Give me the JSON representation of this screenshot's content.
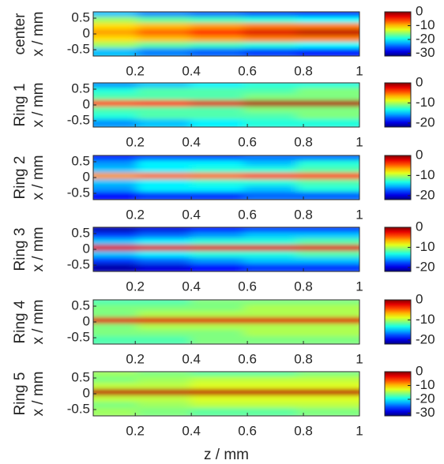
{
  "chart_data": [
    {
      "type": "heatmap",
      "name": "center",
      "ylabel": "x / mm",
      "xlim": [
        0.05,
        1
      ],
      "ylim": [
        -0.7,
        0.7
      ],
      "xticks": [
        0.2,
        0.4,
        0.6,
        0.8,
        1
      ],
      "yticks": [
        0.5,
        0,
        -0.5
      ],
      "clim": [
        -32,
        0
      ],
      "cticks": [
        0,
        -10,
        -20,
        -30
      ],
      "z": [
        0.145,
        0.335,
        0.525,
        0.715,
        0.905
      ],
      "x": [
        0.6,
        0.4,
        0.2,
        0,
        -0.2,
        -0.4,
        -0.6
      ],
      "values": [
        [
          -22,
          -24,
          -25,
          -26,
          -27
        ],
        [
          -15,
          -17,
          -18,
          -19,
          -20
        ],
        [
          -11,
          -10,
          -9,
          -8,
          -8
        ],
        [
          -9,
          -7,
          -5,
          -3,
          -2
        ],
        [
          -11,
          -10,
          -9,
          -8,
          -8
        ],
        [
          -15,
          -17,
          -18,
          -19,
          -20
        ],
        [
          -22,
          -24,
          -25,
          -26,
          -27
        ]
      ]
    },
    {
      "type": "heatmap",
      "name": "Ring 1",
      "ylabel": "x / mm",
      "xlim": [
        0.05,
        1
      ],
      "ylim": [
        -0.7,
        0.7
      ],
      "xticks": [
        0.2,
        0.4,
        0.6,
        0.8,
        1
      ],
      "yticks": [
        0.5,
        0,
        -0.5
      ],
      "clim": [
        -22,
        0
      ],
      "cticks": [
        0,
        -10,
        -20
      ],
      "z": [
        0.145,
        0.335,
        0.525,
        0.715,
        0.905
      ],
      "x": [
        0.6,
        0.4,
        0.2,
        0,
        -0.2,
        -0.4,
        -0.6
      ],
      "values": [
        [
          -16,
          -15,
          -14,
          -13,
          -13
        ],
        [
          -13,
          -12,
          -12,
          -12,
          -11
        ],
        [
          -12,
          -12,
          -12,
          -11,
          -11
        ],
        [
          -4,
          -3,
          -2,
          -1,
          -1
        ],
        [
          -12,
          -12,
          -12,
          -11,
          -11
        ],
        [
          -13,
          -12,
          -12,
          -12,
          -11
        ],
        [
          -16,
          -15,
          -14,
          -13,
          -13
        ]
      ]
    },
    {
      "type": "heatmap",
      "name": "Ring 2",
      "ylabel": "x / mm",
      "xlim": [
        0.05,
        1
      ],
      "ylim": [
        -0.7,
        0.7
      ],
      "xticks": [
        0.2,
        0.4,
        0.6,
        0.8,
        1
      ],
      "yticks": [
        0.5,
        0,
        -0.5
      ],
      "clim": [
        -22,
        0
      ],
      "cticks": [
        0,
        -10,
        -20
      ],
      "z": [
        0.145,
        0.335,
        0.525,
        0.715,
        0.905
      ],
      "x": [
        0.6,
        0.4,
        0.2,
        0,
        -0.2,
        -0.4,
        -0.6
      ],
      "values": [
        [
          -19,
          -18,
          -18,
          -17,
          -17
        ],
        [
          -16,
          -14,
          -14,
          -15,
          -13
        ],
        [
          -15,
          -14,
          -13,
          -13,
          -12
        ],
        [
          -6,
          -5,
          -5,
          -4,
          -4
        ],
        [
          -15,
          -14,
          -13,
          -13,
          -12
        ],
        [
          -16,
          -14,
          -14,
          -15,
          -13
        ],
        [
          -19,
          -18,
          -18,
          -17,
          -17
        ]
      ]
    },
    {
      "type": "heatmap",
      "name": "Ring 3",
      "ylabel": "x / mm",
      "xlim": [
        0.05,
        1
      ],
      "ylim": [
        -0.7,
        0.7
      ],
      "xticks": [
        0.2,
        0.4,
        0.6,
        0.8,
        1
      ],
      "yticks": [
        0.5,
        0,
        -0.5
      ],
      "clim": [
        -22,
        0
      ],
      "cticks": [
        0,
        -10,
        -20
      ],
      "z": [
        0.145,
        0.335,
        0.525,
        0.715,
        0.905
      ],
      "x": [
        0.6,
        0.4,
        0.2,
        0,
        -0.2,
        -0.4,
        -0.6
      ],
      "values": [
        [
          -21,
          -20,
          -19,
          -18,
          -18
        ],
        [
          -18,
          -17,
          -16,
          -15,
          -15
        ],
        [
          -15,
          -14,
          -13,
          -13,
          -12
        ],
        [
          -2,
          -2,
          -2,
          -2,
          -2
        ],
        [
          -15,
          -14,
          -13,
          -13,
          -12
        ],
        [
          -18,
          -17,
          -16,
          -15,
          -15
        ],
        [
          -21,
          -20,
          -19,
          -18,
          -18
        ]
      ]
    },
    {
      "type": "heatmap",
      "name": "Ring 4",
      "ylabel": "x / mm",
      "xlim": [
        0.05,
        1
      ],
      "ylim": [
        -0.7,
        0.7
      ],
      "xticks": [
        0.2,
        0.4,
        0.6,
        0.8,
        1
      ],
      "yticks": [
        0.5,
        0,
        -0.5
      ],
      "clim": [
        -22,
        0
      ],
      "cticks": [
        0,
        -10,
        -20
      ],
      "z": [
        0.145,
        0.335,
        0.525,
        0.715,
        0.905
      ],
      "x": [
        0.6,
        0.4,
        0.2,
        0,
        -0.2,
        -0.4,
        -0.6
      ],
      "values": [
        [
          -12,
          -12,
          -11,
          -11,
          -11
        ],
        [
          -11,
          -11,
          -11,
          -10,
          -10
        ],
        [
          -11,
          -10,
          -10,
          -10,
          -10
        ],
        [
          -2,
          -2,
          -2,
          -2,
          -2
        ],
        [
          -11,
          -10,
          -10,
          -10,
          -10
        ],
        [
          -11,
          -11,
          -11,
          -10,
          -10
        ],
        [
          -12,
          -12,
          -11,
          -11,
          -11
        ]
      ]
    },
    {
      "type": "heatmap",
      "name": "Ring 5",
      "ylabel": "x / mm",
      "xlabel": "z / mm",
      "xlim": [
        0.05,
        1
      ],
      "ylim": [
        -0.7,
        0.7
      ],
      "xticks": [
        0.2,
        0.4,
        0.6,
        0.8,
        1
      ],
      "yticks": [
        0.5,
        0,
        -0.5
      ],
      "clim": [
        -32,
        0
      ],
      "cticks": [
        0,
        -10,
        -20,
        -30
      ],
      "z": [
        0.145,
        0.335,
        0.525,
        0.715,
        0.905
      ],
      "x": [
        0.6,
        0.4,
        0.2,
        0,
        -0.2,
        -0.4,
        -0.6
      ],
      "values": [
        [
          -15,
          -16,
          -17,
          -17,
          -16
        ],
        [
          -16,
          -15,
          -14,
          -14,
          -14
        ],
        [
          -14,
          -14,
          -13,
          -13,
          -13
        ],
        [
          -2,
          -2,
          -2,
          -2,
          -2
        ],
        [
          -14,
          -14,
          -13,
          -13,
          -13
        ],
        [
          -16,
          -15,
          -14,
          -14,
          -14
        ],
        [
          -15,
          -16,
          -17,
          -17,
          -16
        ]
      ]
    }
  ]
}
